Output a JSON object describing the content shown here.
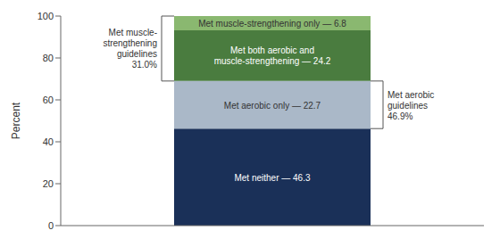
{
  "chart_data": {
    "type": "bar",
    "stacked": true,
    "categories": [
      null
    ],
    "ylabel": "Percent",
    "ylim": [
      0,
      100
    ],
    "yticks": [
      0,
      20,
      40,
      60,
      80,
      100
    ],
    "series": [
      {
        "name": "Met neither — 46.3",
        "color": "#1a3058",
        "values": [
          46.3
        ]
      },
      {
        "name": "Met aerobic only — 22.7",
        "color": "#aab8c8",
        "values": [
          22.7
        ]
      },
      {
        "name": "Met both aerobic and\nmuscle-strengthening — 24.2",
        "color": "#4a7c3f",
        "values": [
          24.2
        ]
      },
      {
        "name": "Met muscle-strengthening only — 6.8",
        "color": "#8ab870",
        "values": [
          6.8
        ]
      }
    ],
    "annotations": [
      {
        "text": "Met muscle-\nstrengthening\nguidelines\n31.0%",
        "y": [
          69.0,
          100.0
        ]
      },
      {
        "text": "Met aerobic\nguidelines\n46.9%",
        "y": [
          46.3,
          69.0
        ]
      }
    ]
  }
}
